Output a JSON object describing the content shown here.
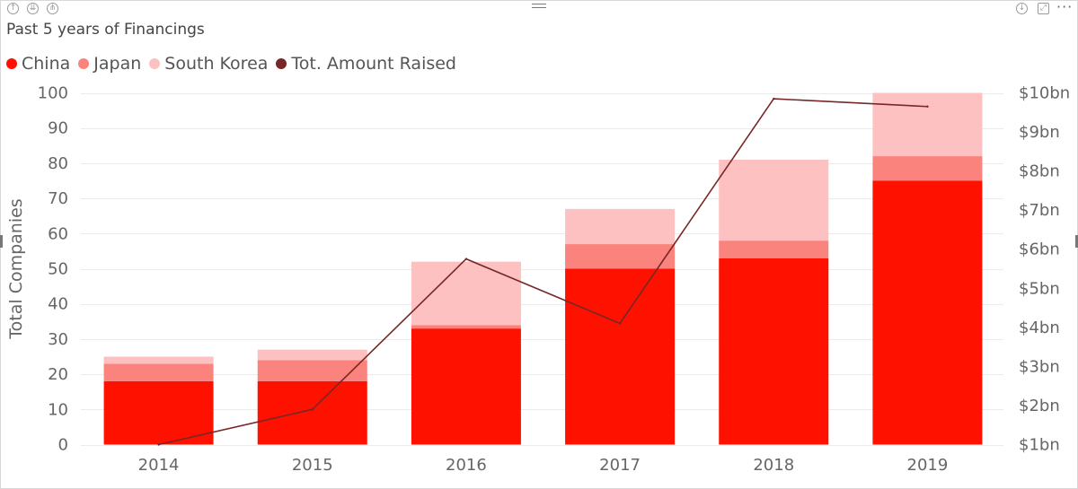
{
  "toolbar": {
    "left_icons": [
      "up-arrow-icon",
      "double-down-arrow-icon",
      "expand-hierarchy-icon"
    ],
    "right_icons": [
      "drill-down-icon",
      "focus-mode-icon",
      "more-options-icon"
    ],
    "more_label": "···"
  },
  "title": "Past 5 years of Financings",
  "chart_data": {
    "type": "bar",
    "stacked": true,
    "categories": [
      "2014",
      "2015",
      "2016",
      "2017",
      "2018",
      "2019"
    ],
    "series": [
      {
        "name": "China",
        "color": "#ff1100",
        "values": [
          18,
          18,
          33,
          50,
          53,
          75
        ]
      },
      {
        "name": "Japan",
        "color": "#fb837e",
        "values": [
          5,
          6,
          1,
          7,
          5,
          7
        ]
      },
      {
        "name": "South Korea",
        "color": "#fcc1c0",
        "values": [
          2,
          3,
          18,
          10,
          23,
          18
        ]
      }
    ],
    "line_series": {
      "name": "Tot. Amount Raised",
      "color": "#772727",
      "axis": "right",
      "values": [
        1.0,
        1.9,
        5.75,
        4.1,
        9.85,
        9.65
      ]
    },
    "ylabel": "Total Companies",
    "ylim": [
      0,
      100
    ],
    "yticks": [
      "0",
      "10",
      "20",
      "30",
      "40",
      "50",
      "60",
      "70",
      "80",
      "90",
      "100"
    ],
    "y2lim": [
      1,
      10
    ],
    "y2ticks": [
      "$1bn",
      "$2bn",
      "$3bn",
      "$4bn",
      "$5bn",
      "$6bn",
      "$7bn",
      "$8bn",
      "$9bn",
      "$10bn"
    ],
    "grid": true,
    "legend_position": "top-left"
  }
}
